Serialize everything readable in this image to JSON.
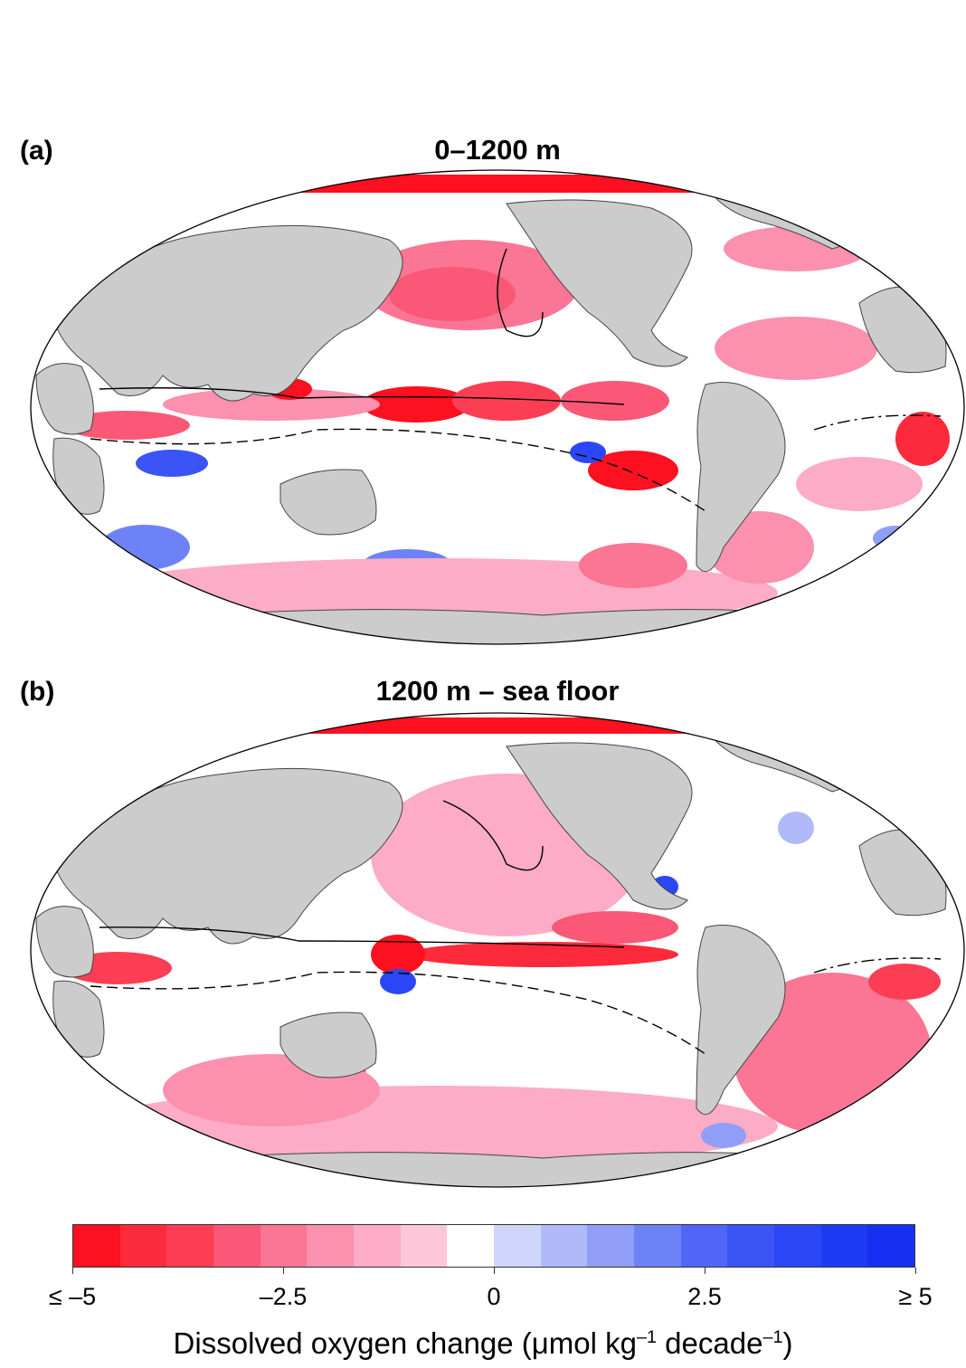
{
  "panels": [
    {
      "label": "(a)",
      "title": "0–1200 m"
    },
    {
      "label": "(b)",
      "title": "1200 m – sea floor"
    }
  ],
  "colorbar": {
    "colors": [
      "#fd1020",
      "#fc2a3a",
      "#fc3e55",
      "#fb5776",
      "#fb7595",
      "#fb91ae",
      "#fcacc6",
      "#fdc6d9",
      "#ffffff",
      "#d0d6fb",
      "#b1baf9",
      "#919ef8",
      "#6e82f7",
      "#4f66f6",
      "#3a54f5",
      "#2b47f5",
      "#1d3bf4",
      "#1530f3"
    ],
    "ticks": [
      "≤ –5",
      "–2.5",
      "0",
      "2.5",
      "≥ 5"
    ],
    "title_main": "Dissolved oxygen change (μmol kg",
    "title_exp1": "–1",
    "title_mid": " decade",
    "title_exp2": "–1",
    "title_end": ")"
  },
  "map_colors": {
    "land": "#cccccc",
    "ocean": "#ffffff",
    "coast": "#444444"
  }
}
